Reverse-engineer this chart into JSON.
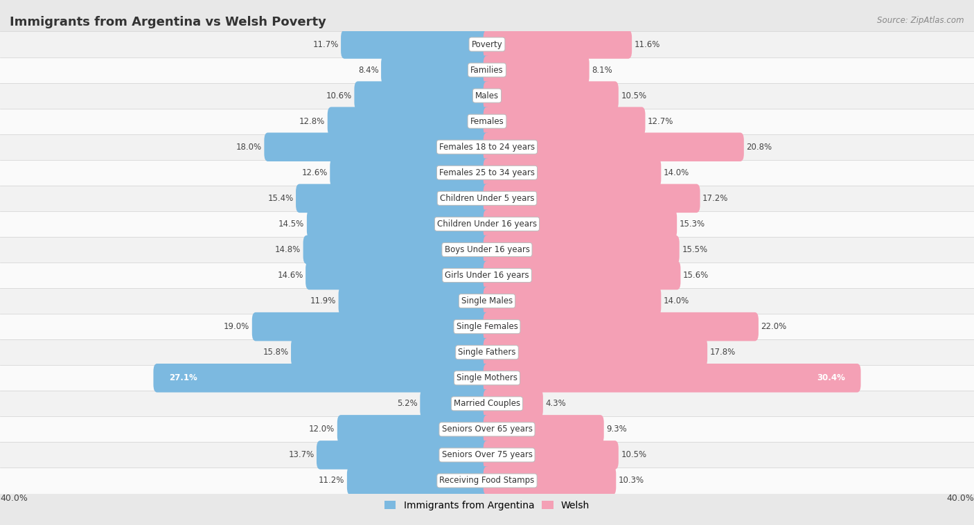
{
  "title": "Immigrants from Argentina vs Welsh Poverty",
  "source": "Source: ZipAtlas.com",
  "categories": [
    "Poverty",
    "Families",
    "Males",
    "Females",
    "Females 18 to 24 years",
    "Females 25 to 34 years",
    "Children Under 5 years",
    "Children Under 16 years",
    "Boys Under 16 years",
    "Girls Under 16 years",
    "Single Males",
    "Single Females",
    "Single Fathers",
    "Single Mothers",
    "Married Couples",
    "Seniors Over 65 years",
    "Seniors Over 75 years",
    "Receiving Food Stamps"
  ],
  "left_values": [
    11.7,
    8.4,
    10.6,
    12.8,
    18.0,
    12.6,
    15.4,
    14.5,
    14.8,
    14.6,
    11.9,
    19.0,
    15.8,
    27.1,
    5.2,
    12.0,
    13.7,
    11.2
  ],
  "right_values": [
    11.6,
    8.1,
    10.5,
    12.7,
    20.8,
    14.0,
    17.2,
    15.3,
    15.5,
    15.6,
    14.0,
    22.0,
    17.8,
    30.4,
    4.3,
    9.3,
    10.5,
    10.3
  ],
  "left_color": "#7cb9e0",
  "right_color": "#f4a0b5",
  "bg_color": "#e8e8e8",
  "row_bg_even": "#f2f2f2",
  "row_bg_odd": "#fafafa",
  "axis_max": 40.0,
  "label_fontsize": 8.5,
  "value_fontsize": 8.5,
  "title_fontsize": 13,
  "legend_label_left": "Immigrants from Argentina",
  "legend_label_right": "Welsh"
}
